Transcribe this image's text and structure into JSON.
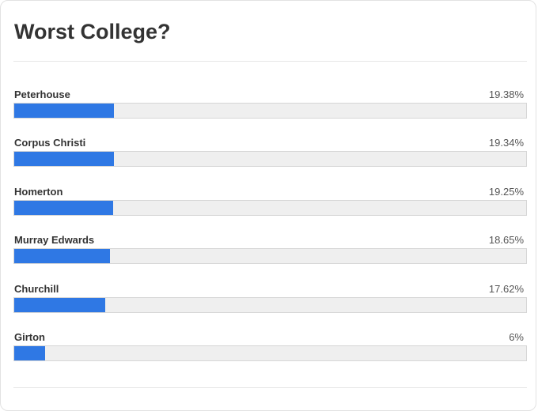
{
  "poll": {
    "title": "Worst College?",
    "options": [
      {
        "label": "Peterhouse",
        "percent_text": "19.38%",
        "percent": 19.38
      },
      {
        "label": "Corpus Christi",
        "percent_text": "19.34%",
        "percent": 19.34
      },
      {
        "label": "Homerton",
        "percent_text": "19.25%",
        "percent": 19.25
      },
      {
        "label": "Murray Edwards",
        "percent_text": "18.65%",
        "percent": 18.65
      },
      {
        "label": "Churchill",
        "percent_text": "17.62%",
        "percent": 17.62
      },
      {
        "label": "Girton",
        "percent_text": "6%",
        "percent": 6
      }
    ],
    "colors": {
      "bar_fill": "#2f78e4",
      "bar_track": "#efefef"
    }
  }
}
